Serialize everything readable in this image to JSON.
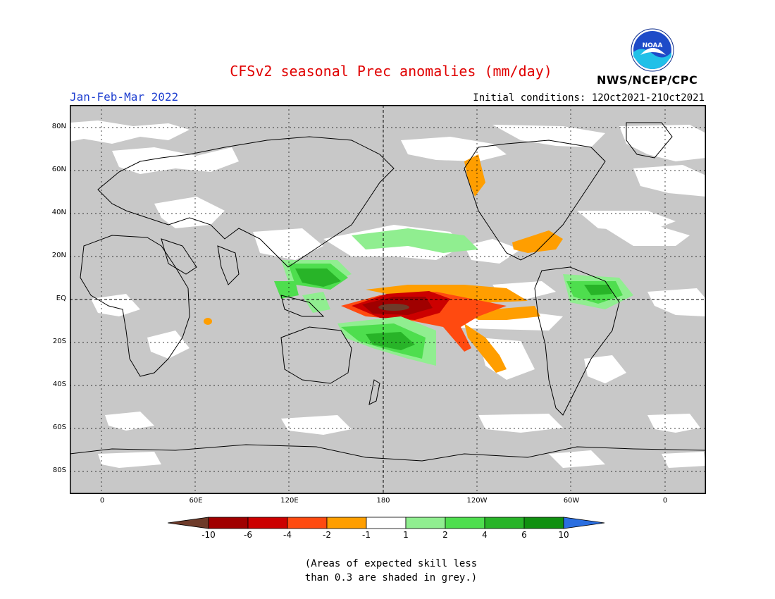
{
  "header": {
    "title": "CFSv2 seasonal Prec anomalies (mm/day)",
    "season": "Jan-Feb-Mar 2022",
    "initial_conditions": "Initial conditions: 12Oct2021-21Oct2021",
    "agency": "NWS/NCEP/CPC",
    "logo_text": "NOAA"
  },
  "map": {
    "lat_labels": [
      "80N",
      "60N",
      "40N",
      "20N",
      "EQ",
      "20S",
      "40S",
      "60S",
      "80S"
    ],
    "lon_labels": [
      "0",
      "60E",
      "120E",
      "180",
      "120W",
      "60W",
      "0"
    ],
    "colors": {
      "ocean_grey": "#c8c8c8",
      "not_significant": "#ffffff"
    }
  },
  "legend": {
    "tick_labels": [
      "-10",
      "-6",
      "-4",
      "-2",
      "-1",
      "1",
      "2",
      "4",
      "6",
      "10"
    ],
    "colors": [
      "#6e3b2a",
      "#a00000",
      "#cc0000",
      "#ff4a10",
      "#ff9e00",
      "#ffffff",
      "#90ee90",
      "#4ede4e",
      "#28b428",
      "#109010",
      "#2a6ee0"
    ]
  },
  "note": {
    "line1": "(Areas of expected skill less",
    "line2": "than 0.3 are shaded in grey.)"
  }
}
